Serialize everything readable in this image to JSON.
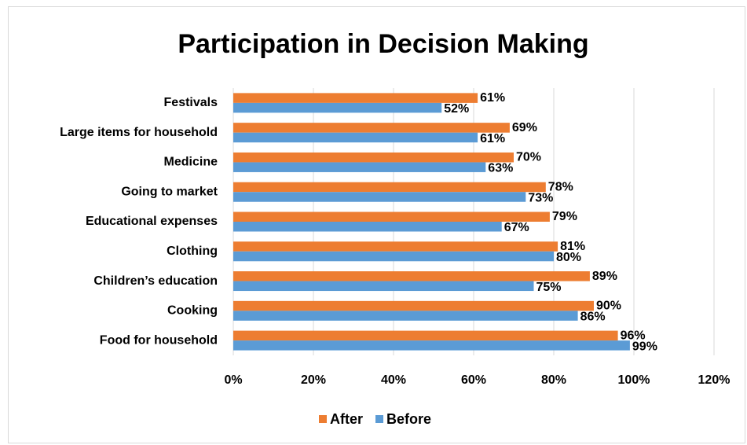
{
  "chart_data": {
    "type": "barh",
    "title": "Participation in Decision Making",
    "categories": [
      "Festivals",
      "Large items for household",
      "Medicine",
      "Going to market",
      "Educational expenses",
      "Clothing",
      "Children’s education",
      "Cooking",
      "Food for household"
    ],
    "series": [
      {
        "name": "After",
        "color": "#ED7D31",
        "values": [
          61,
          69,
          70,
          78,
          79,
          81,
          89,
          90,
          96
        ],
        "value_labels": [
          "61%",
          "69%",
          "70%",
          "78%",
          "79%",
          "81%",
          "89%",
          "90%",
          "96%"
        ]
      },
      {
        "name": "Before",
        "color": "#5B9BD5",
        "values": [
          52,
          61,
          63,
          73,
          67,
          80,
          75,
          86,
          99
        ],
        "value_labels": [
          "52%",
          "61%",
          "63%",
          "73%",
          "67%",
          "80%",
          "75%",
          "86%",
          "99%"
        ]
      }
    ],
    "xlim": [
      0,
      120
    ],
    "xticks": [
      {
        "value": 0,
        "label": "0%"
      },
      {
        "value": 20,
        "label": "20%"
      },
      {
        "value": 40,
        "label": "40%"
      },
      {
        "value": 60,
        "label": "60%"
      },
      {
        "value": 80,
        "label": "80%"
      },
      {
        "value": 100,
        "label": "100%"
      },
      {
        "value": 120,
        "label": "120%"
      }
    ],
    "grid": true,
    "legend": "bottom"
  }
}
